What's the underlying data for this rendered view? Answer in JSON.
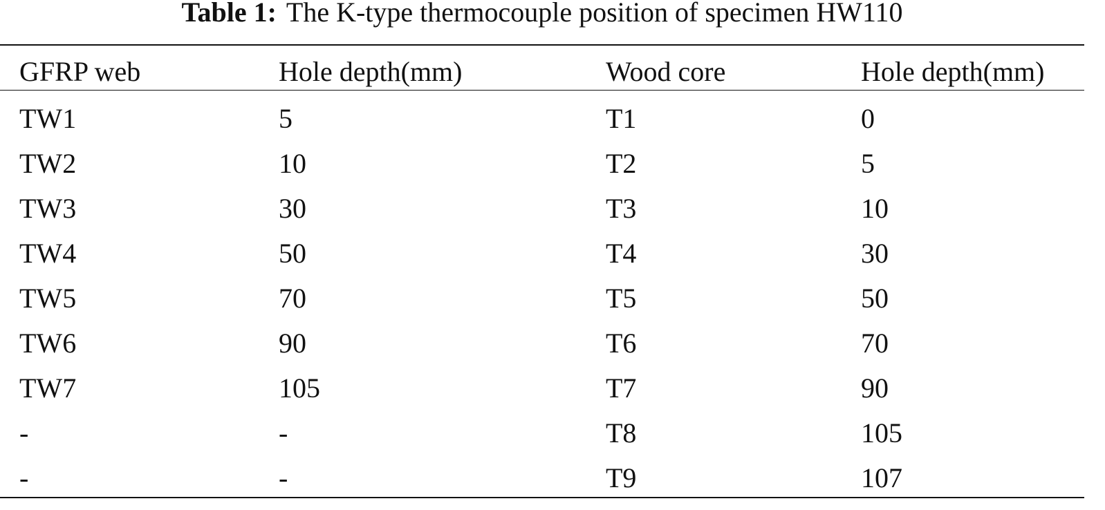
{
  "caption": {
    "label": "Table 1:",
    "text": "The K-type thermocouple position of specimen HW110"
  },
  "table": {
    "header": [
      "GFRP web",
      "Hole depth(mm)",
      "Wood core",
      "Hole depth(mm)"
    ],
    "rows": [
      [
        "TW1",
        5,
        "T1",
        0
      ],
      [
        "TW2",
        10,
        "T2",
        5
      ],
      [
        "TW3",
        30,
        "T3",
        10
      ],
      [
        "TW4",
        50,
        "T4",
        30
      ],
      [
        "TW5",
        70,
        "T5",
        50
      ],
      [
        "TW6",
        90,
        "T6",
        70
      ],
      [
        "TW7",
        105,
        "T7",
        90
      ],
      [
        "-",
        "-",
        "T8",
        105
      ],
      [
        "-",
        "-",
        "T9",
        107
      ]
    ]
  }
}
